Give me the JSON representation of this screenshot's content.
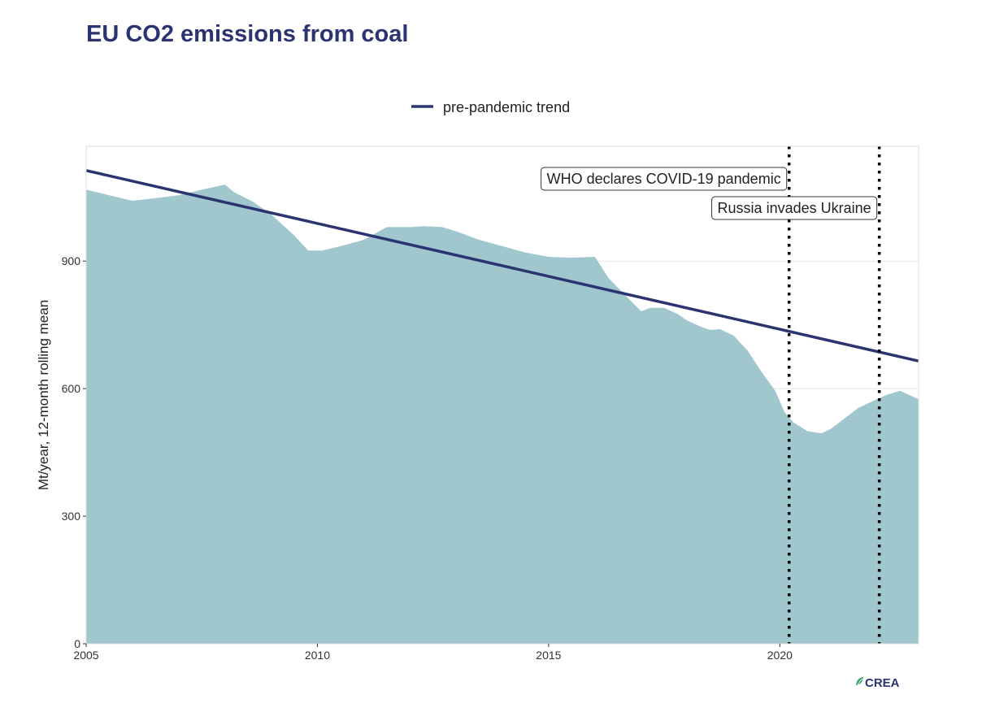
{
  "chart_data": {
    "type": "area",
    "title": "EU CO2 emissions from coal",
    "xlabel": "",
    "ylabel": "Mt/year, 12-month rolling mean",
    "xlim": [
      2005,
      2023
    ],
    "ylim": [
      0,
      1170
    ],
    "x_ticks": [
      2005,
      2010,
      2015,
      2020
    ],
    "y_ticks": [
      0,
      300,
      600,
      900
    ],
    "grid": true,
    "legend": {
      "position": "top",
      "entries": [
        "pre-pandemic trend"
      ]
    },
    "series": [
      {
        "type": "area",
        "color": "#9fc7cd",
        "x": [
          2005.0,
          2005.5,
          2006.0,
          2006.5,
          2007.0,
          2007.5,
          2008.0,
          2008.2,
          2008.6,
          2009.0,
          2009.5,
          2009.8,
          2010.1,
          2010.5,
          2011.0,
          2011.5,
          2012.0,
          2012.3,
          2012.7,
          2013.0,
          2013.5,
          2014.0,
          2014.5,
          2015.0,
          2015.5,
          2016.0,
          2016.3,
          2016.7,
          2017.0,
          2017.2,
          2017.5,
          2017.8,
          2018.0,
          2018.3,
          2018.5,
          2018.7,
          2019.0,
          2019.3,
          2019.6,
          2019.9,
          2020.1,
          2020.3,
          2020.6,
          2020.9,
          2021.1,
          2021.4,
          2021.7,
          2022.0,
          2022.3,
          2022.6,
          2022.8,
          2022.9,
          2023.0
        ],
        "y": [
          1068,
          1055,
          1042,
          1048,
          1055,
          1068,
          1080,
          1062,
          1040,
          1010,
          960,
          925,
          925,
          935,
          950,
          980,
          980,
          982,
          980,
          970,
          950,
          935,
          920,
          910,
          908,
          910,
          860,
          815,
          782,
          790,
          790,
          775,
          760,
          745,
          738,
          740,
          725,
          690,
          640,
          595,
          545,
          520,
          500,
          495,
          505,
          530,
          555,
          570,
          585,
          595,
          585,
          580,
          575
        ]
      },
      {
        "type": "line",
        "name": "pre-pandemic trend",
        "color": "#2b3470",
        "x": [
          2005,
          2023
        ],
        "y": [
          1113,
          665
        ]
      }
    ],
    "vlines": [
      {
        "x": 2020.2,
        "label": "WHO declares COVID-19 pandemic"
      },
      {
        "x": 2022.15,
        "label": "Russia invades Ukraine"
      }
    ]
  },
  "logo": "CREA",
  "colors": {
    "title": "#2b3470",
    "area": "#9fc7cd",
    "trend": "#2b3470",
    "grid": "#e6e6e6"
  }
}
